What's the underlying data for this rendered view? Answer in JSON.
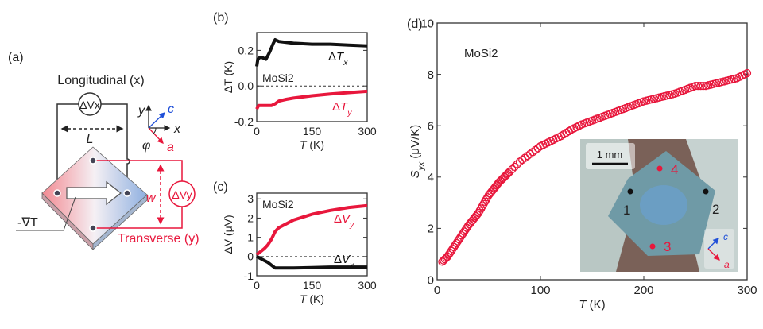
{
  "colors": {
    "red": "#e8173c",
    "black": "#111111",
    "blue": "#1f4fd8"
  },
  "panel_a": {
    "label": "(a)",
    "longitudinal": "Longitudinal (x)",
    "dvx": "ΔVx",
    "dvy": "ΔVy",
    "L": "L",
    "w": "w",
    "grad": "-∇T",
    "transverse": "Transverse (y)",
    "axes": {
      "y": "y",
      "x": "x",
      "c": "c",
      "a": "a",
      "phi": "φ"
    }
  },
  "chart_data": [
    {
      "panel": "(b)",
      "type": "line",
      "xlabel": "T (K)",
      "ylabel": "ΔT (K)",
      "xlim": [
        0,
        300
      ],
      "ylim": [
        -0.2,
        0.3
      ],
      "xticks": [
        "0",
        "150",
        "300"
      ],
      "yticks": [
        "-0.2",
        "0.0",
        "0.2"
      ],
      "annotation": "MoSi2",
      "series": [
        {
          "name": "ΔTx",
          "color": "#111111",
          "x": [
            0,
            3,
            8,
            15,
            25,
            35,
            45,
            50,
            60,
            80,
            100,
            150,
            200,
            250,
            300
          ],
          "y": [
            0.11,
            0.15,
            0.16,
            0.16,
            0.15,
            0.19,
            0.24,
            0.26,
            0.25,
            0.245,
            0.24,
            0.235,
            0.235,
            0.23,
            0.225
          ]
        },
        {
          "name": "ΔTy",
          "color": "#e8173c",
          "x": [
            0,
            5,
            15,
            25,
            40,
            50,
            60,
            80,
            100,
            150,
            200,
            250,
            300
          ],
          "y": [
            -0.13,
            -0.11,
            -0.11,
            -0.11,
            -0.11,
            -0.1,
            -0.085,
            -0.075,
            -0.068,
            -0.055,
            -0.045,
            -0.037,
            -0.03
          ]
        }
      ]
    },
    {
      "panel": "(c)",
      "type": "line",
      "xlabel": "T (K)",
      "ylabel": "ΔV (μV)",
      "xlim": [
        0,
        300
      ],
      "ylim": [
        -1,
        3.3
      ],
      "xticks": [
        "0",
        "150",
        "300"
      ],
      "yticks": [
        "-1",
        "0",
        "1",
        "2",
        "3"
      ],
      "annotation": "MoSi2",
      "series": [
        {
          "name": "ΔVy",
          "color": "#e8173c",
          "x": [
            0,
            10,
            20,
            30,
            40,
            45,
            50,
            60,
            80,
            100,
            150,
            200,
            250,
            300
          ],
          "y": [
            0.1,
            0.25,
            0.4,
            0.6,
            0.9,
            1.1,
            1.3,
            1.5,
            1.7,
            1.9,
            2.2,
            2.4,
            2.55,
            2.65
          ]
        },
        {
          "name": "ΔVx",
          "color": "#111111",
          "x": [
            0,
            10,
            20,
            30,
            40,
            50,
            60,
            100,
            150,
            200,
            250,
            300
          ],
          "y": [
            0,
            -0.1,
            -0.2,
            -0.3,
            -0.45,
            -0.6,
            -0.6,
            -0.6,
            -0.58,
            -0.55,
            -0.55,
            -0.55
          ]
        }
      ]
    },
    {
      "panel": "(d)",
      "type": "scatter",
      "xlabel": "T (K)",
      "ylabel": "Syx (μV/K)",
      "xlim": [
        0,
        300
      ],
      "ylim": [
        0,
        10
      ],
      "xticks": [
        "0",
        "100",
        "200",
        "300"
      ],
      "yticks": [
        "0",
        "2",
        "4",
        "6",
        "8",
        "10"
      ],
      "annotation": "MoSi2",
      "series": [
        {
          "color": "#e8173c",
          "marker": "open-circle",
          "x": [
            5,
            10,
            15,
            20,
            25,
            30,
            35,
            40,
            45,
            50,
            55,
            60,
            65,
            70,
            80,
            90,
            100,
            110,
            120,
            130,
            140,
            150,
            160,
            170,
            180,
            190,
            200,
            210,
            220,
            230,
            240,
            250,
            260,
            270,
            280,
            290,
            300
          ],
          "y": [
            0.7,
            0.9,
            1.2,
            1.5,
            1.8,
            2.1,
            2.35,
            2.6,
            2.95,
            3.3,
            3.55,
            3.8,
            4.0,
            4.2,
            4.6,
            4.9,
            5.2,
            5.4,
            5.6,
            5.85,
            6.05,
            6.2,
            6.35,
            6.5,
            6.65,
            6.8,
            6.95,
            7.05,
            7.15,
            7.25,
            7.4,
            7.55,
            7.55,
            7.65,
            7.75,
            7.85,
            8.05
          ]
        }
      ],
      "inset": {
        "scale_bar": "1 mm",
        "contacts": [
          "1",
          "2",
          "3",
          "4"
        ],
        "axes": {
          "c": "c",
          "a": "a"
        }
      }
    }
  ]
}
